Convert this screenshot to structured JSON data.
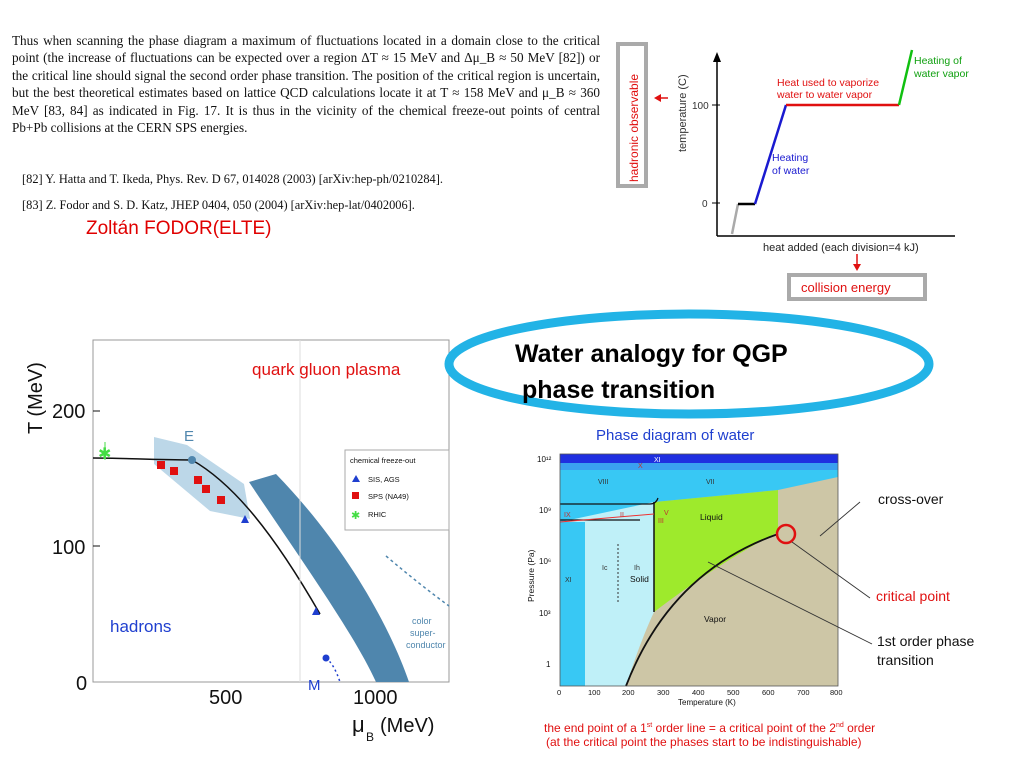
{
  "paper": {
    "paragraph": "Thus when scanning the phase diagram a maximum of fluctuations located in a domain close to the critical point (the increase of fluctuations can be expected over a region ΔT ≈ 15 MeV and Δμ_B ≈ 50 MeV [82]) or the critical line should signal the second order phase transition. The position of the critical region is uncertain, but the best theoretical estimates based on lattice QCD calculations locate it at T ≈ 158 MeV and μ_B ≈ 360 MeV [83, 84] as indicated in Fig. 17. It is thus in the vicinity of the chemical freeze-out points of central Pb+Pb collisions at the CERN SPS energies.",
    "ref82": "[82]  Y. Hatta and T. Ikeda, Phys. Rev. D 67, 014028 (2003) [arXiv:hep-ph/0210284].",
    "ref83": "[83]  Z. Fodor and S. D. Katz, JHEP 0404, 050 (2004) [arXiv:hep-lat/0402006]."
  },
  "author": "Zoltán FODOR(ELTE)",
  "heating": {
    "ylabel": "temperature (C)",
    "tick100": "100",
    "tick0": "0",
    "xlabel": "heat added (each division=4 kJ)",
    "label_water": [
      "Heating",
      "of water"
    ],
    "label_vaporize": [
      "Heat used to vaporize",
      "water to water vapor"
    ],
    "label_vapor": [
      "Heating of",
      "water vapor"
    ],
    "box_hadronic": "hadronic observable",
    "box_collision": "collision energy",
    "colors": {
      "ice": "#aaaaaa",
      "melt": "#000000",
      "water": "#1a1ad0",
      "boil": "#e01010",
      "vapor": "#10c010",
      "arrow": "#e01010"
    }
  },
  "qcd": {
    "ylabel": "T (MeV)",
    "xlabel": "μ",
    "xlabel_sub": "B",
    "xlabel_unit": "(MeV)",
    "yticks": [
      "0",
      "100",
      "200"
    ],
    "xticks": [
      "500",
      "1000"
    ],
    "qgp": "quark gluon plasma",
    "hadrons": "hadrons",
    "csc": [
      "color",
      "super-",
      "conductor"
    ],
    "E": "E",
    "M": "M",
    "legend_title": "chemical freeze-out",
    "legend": [
      "SIS, AGS",
      "SPS (NA49)",
      "RHIC"
    ],
    "colors": {
      "band": "#4f86ad",
      "light": "#bcd7e8",
      "red": "#e01010",
      "blue": "#1f3fcf",
      "green": "#44dd44"
    }
  },
  "callout": [
    "Water analogy for QGP",
    "phase transition"
  ],
  "water": {
    "title": "Phase diagram of water",
    "ylabel": "Pressure (Pa)",
    "xlabel": "Temperature (K)",
    "yticks": [
      "10¹²",
      "10⁹",
      "10⁶",
      "10³",
      "1"
    ],
    "xticks": [
      "0",
      "100",
      "200",
      "300",
      "400",
      "500",
      "600",
      "700",
      "800"
    ],
    "liquid": "Liquid",
    "solid": "Solid",
    "vapor": "Vapor",
    "ice_labels": {
      "XI": "XI",
      "Ic": "Ic",
      "Ih": "Ih",
      "VIII": "VIII",
      "VII": "VII",
      "IX": "IX",
      "II": "II",
      "V": "V",
      "III": "III",
      "X": "X",
      "XI_top": "XI"
    },
    "colors": {
      "liquid": "#9eea2c",
      "solid": "#bff0f8",
      "ice": "#38c8f4",
      "vapor": "#cdc6a6",
      "top": "#1f2fe0"
    }
  },
  "annotations": {
    "crossover": "cross-over",
    "critical": "critical point",
    "first_order": [
      "1st order phase",
      "transition"
    ]
  },
  "footnote": {
    "l1a": "the end point of a 1",
    "l1b": "st",
    "l1c": " order line = a critical point of the 2",
    "l1d": "nd",
    "l1e": "  order",
    "l2": "(at the critical point the phases start to be indistinguishable)"
  }
}
